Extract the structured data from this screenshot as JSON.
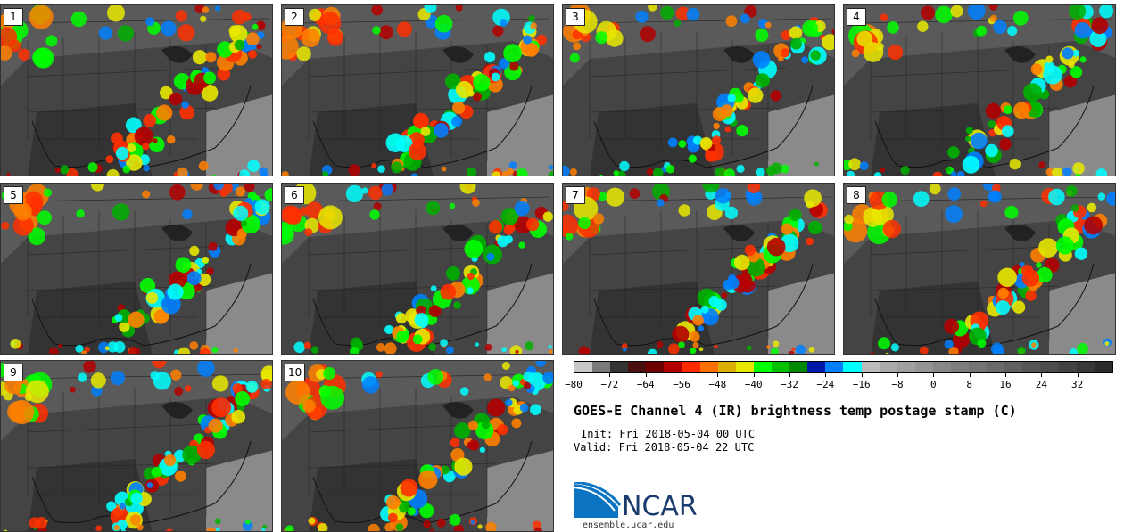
{
  "panels": [
    {
      "label": "1"
    },
    {
      "label": "2"
    },
    {
      "label": "3"
    },
    {
      "label": "4"
    },
    {
      "label": "5"
    },
    {
      "label": "6"
    },
    {
      "label": "7"
    },
    {
      "label": "8"
    },
    {
      "label": "9"
    },
    {
      "label": "10"
    }
  ],
  "colorbar": {
    "colors": [
      "#c8c8c8",
      "#7a7a7a",
      "#333333",
      "#4a1010",
      "#6e0000",
      "#b40000",
      "#ff2a00",
      "#ff7000",
      "#ddb000",
      "#e8e800",
      "#00ff00",
      "#00c000",
      "#008800",
      "#0018a8",
      "#0080ff",
      "#00ffff",
      "#bbbbbb",
      "#aaaaaa",
      "#a0a0a0",
      "#949494",
      "#888888",
      "#7e7e7e",
      "#747474",
      "#6a6a6a",
      "#606060",
      "#565656",
      "#4c4c4c",
      "#424242",
      "#383838",
      "#2a2a2a"
    ],
    "tick_labels": [
      "−80",
      "−72",
      "−64",
      "−56",
      "−48",
      "−40",
      "−32",
      "−24",
      "−16",
      "−8",
      "0",
      "8",
      "16",
      "24",
      "32"
    ]
  },
  "title": "GOES-E Channel 4 (IR) brightness temp postage stamp (C)",
  "init": "Init: Fri 2018-05-04 00 UTC",
  "valid": "Valid: Fri 2018-05-04 22 UTC",
  "logo_text": "NCAR",
  "url": "ensemble.ucar.edu"
}
